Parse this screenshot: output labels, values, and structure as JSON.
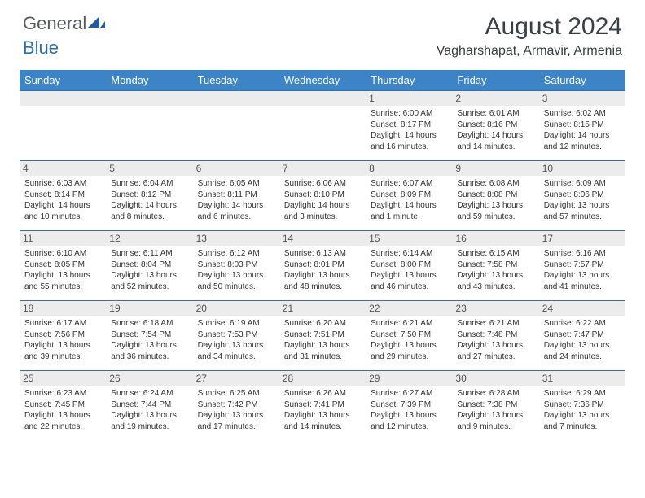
{
  "logo": {
    "text1": "General",
    "text2": "Blue",
    "icon_color": "#1f5d9c"
  },
  "header": {
    "month_title": "August 2024",
    "location": "Vagharshapat, Armavir, Armenia"
  },
  "theme": {
    "header_bg": "#3c84c6",
    "header_text": "#ffffff",
    "daynum_bg": "#ececec",
    "rule_color": "#3c6ea0"
  },
  "day_headers": [
    "Sunday",
    "Monday",
    "Tuesday",
    "Wednesday",
    "Thursday",
    "Friday",
    "Saturday"
  ],
  "weeks": [
    [
      {
        "num": "",
        "empty": true
      },
      {
        "num": "",
        "empty": true
      },
      {
        "num": "",
        "empty": true
      },
      {
        "num": "",
        "empty": true
      },
      {
        "num": "1",
        "sunrise": "Sunrise: 6:00 AM",
        "sunset": "Sunset: 8:17 PM",
        "daylight": "Daylight: 14 hours and 16 minutes."
      },
      {
        "num": "2",
        "sunrise": "Sunrise: 6:01 AM",
        "sunset": "Sunset: 8:16 PM",
        "daylight": "Daylight: 14 hours and 14 minutes."
      },
      {
        "num": "3",
        "sunrise": "Sunrise: 6:02 AM",
        "sunset": "Sunset: 8:15 PM",
        "daylight": "Daylight: 14 hours and 12 minutes."
      }
    ],
    [
      {
        "num": "4",
        "sunrise": "Sunrise: 6:03 AM",
        "sunset": "Sunset: 8:14 PM",
        "daylight": "Daylight: 14 hours and 10 minutes."
      },
      {
        "num": "5",
        "sunrise": "Sunrise: 6:04 AM",
        "sunset": "Sunset: 8:12 PM",
        "daylight": "Daylight: 14 hours and 8 minutes."
      },
      {
        "num": "6",
        "sunrise": "Sunrise: 6:05 AM",
        "sunset": "Sunset: 8:11 PM",
        "daylight": "Daylight: 14 hours and 6 minutes."
      },
      {
        "num": "7",
        "sunrise": "Sunrise: 6:06 AM",
        "sunset": "Sunset: 8:10 PM",
        "daylight": "Daylight: 14 hours and 3 minutes."
      },
      {
        "num": "8",
        "sunrise": "Sunrise: 6:07 AM",
        "sunset": "Sunset: 8:09 PM",
        "daylight": "Daylight: 14 hours and 1 minute."
      },
      {
        "num": "9",
        "sunrise": "Sunrise: 6:08 AM",
        "sunset": "Sunset: 8:08 PM",
        "daylight": "Daylight: 13 hours and 59 minutes."
      },
      {
        "num": "10",
        "sunrise": "Sunrise: 6:09 AM",
        "sunset": "Sunset: 8:06 PM",
        "daylight": "Daylight: 13 hours and 57 minutes."
      }
    ],
    [
      {
        "num": "11",
        "sunrise": "Sunrise: 6:10 AM",
        "sunset": "Sunset: 8:05 PM",
        "daylight": "Daylight: 13 hours and 55 minutes."
      },
      {
        "num": "12",
        "sunrise": "Sunrise: 6:11 AM",
        "sunset": "Sunset: 8:04 PM",
        "daylight": "Daylight: 13 hours and 52 minutes."
      },
      {
        "num": "13",
        "sunrise": "Sunrise: 6:12 AM",
        "sunset": "Sunset: 8:03 PM",
        "daylight": "Daylight: 13 hours and 50 minutes."
      },
      {
        "num": "14",
        "sunrise": "Sunrise: 6:13 AM",
        "sunset": "Sunset: 8:01 PM",
        "daylight": "Daylight: 13 hours and 48 minutes."
      },
      {
        "num": "15",
        "sunrise": "Sunrise: 6:14 AM",
        "sunset": "Sunset: 8:00 PM",
        "daylight": "Daylight: 13 hours and 46 minutes."
      },
      {
        "num": "16",
        "sunrise": "Sunrise: 6:15 AM",
        "sunset": "Sunset: 7:58 PM",
        "daylight": "Daylight: 13 hours and 43 minutes."
      },
      {
        "num": "17",
        "sunrise": "Sunrise: 6:16 AM",
        "sunset": "Sunset: 7:57 PM",
        "daylight": "Daylight: 13 hours and 41 minutes."
      }
    ],
    [
      {
        "num": "18",
        "sunrise": "Sunrise: 6:17 AM",
        "sunset": "Sunset: 7:56 PM",
        "daylight": "Daylight: 13 hours and 39 minutes."
      },
      {
        "num": "19",
        "sunrise": "Sunrise: 6:18 AM",
        "sunset": "Sunset: 7:54 PM",
        "daylight": "Daylight: 13 hours and 36 minutes."
      },
      {
        "num": "20",
        "sunrise": "Sunrise: 6:19 AM",
        "sunset": "Sunset: 7:53 PM",
        "daylight": "Daylight: 13 hours and 34 minutes."
      },
      {
        "num": "21",
        "sunrise": "Sunrise: 6:20 AM",
        "sunset": "Sunset: 7:51 PM",
        "daylight": "Daylight: 13 hours and 31 minutes."
      },
      {
        "num": "22",
        "sunrise": "Sunrise: 6:21 AM",
        "sunset": "Sunset: 7:50 PM",
        "daylight": "Daylight: 13 hours and 29 minutes."
      },
      {
        "num": "23",
        "sunrise": "Sunrise: 6:21 AM",
        "sunset": "Sunset: 7:48 PM",
        "daylight": "Daylight: 13 hours and 27 minutes."
      },
      {
        "num": "24",
        "sunrise": "Sunrise: 6:22 AM",
        "sunset": "Sunset: 7:47 PM",
        "daylight": "Daylight: 13 hours and 24 minutes."
      }
    ],
    [
      {
        "num": "25",
        "sunrise": "Sunrise: 6:23 AM",
        "sunset": "Sunset: 7:45 PM",
        "daylight": "Daylight: 13 hours and 22 minutes."
      },
      {
        "num": "26",
        "sunrise": "Sunrise: 6:24 AM",
        "sunset": "Sunset: 7:44 PM",
        "daylight": "Daylight: 13 hours and 19 minutes."
      },
      {
        "num": "27",
        "sunrise": "Sunrise: 6:25 AM",
        "sunset": "Sunset: 7:42 PM",
        "daylight": "Daylight: 13 hours and 17 minutes."
      },
      {
        "num": "28",
        "sunrise": "Sunrise: 6:26 AM",
        "sunset": "Sunset: 7:41 PM",
        "daylight": "Daylight: 13 hours and 14 minutes."
      },
      {
        "num": "29",
        "sunrise": "Sunrise: 6:27 AM",
        "sunset": "Sunset: 7:39 PM",
        "daylight": "Daylight: 13 hours and 12 minutes."
      },
      {
        "num": "30",
        "sunrise": "Sunrise: 6:28 AM",
        "sunset": "Sunset: 7:38 PM",
        "daylight": "Daylight: 13 hours and 9 minutes."
      },
      {
        "num": "31",
        "sunrise": "Sunrise: 6:29 AM",
        "sunset": "Sunset: 7:36 PM",
        "daylight": "Daylight: 13 hours and 7 minutes."
      }
    ]
  ]
}
